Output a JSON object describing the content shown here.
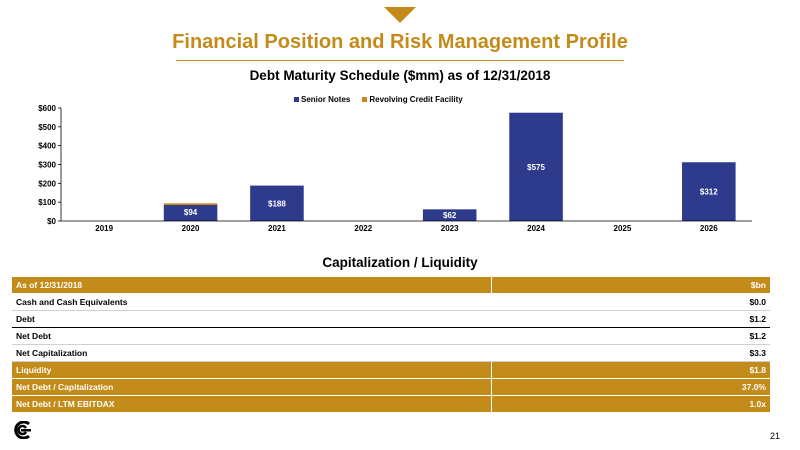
{
  "page": {
    "title": "Financial Position and Risk Management Profile",
    "page_number": "21",
    "accent_color": "#c38b1a",
    "logo_icon": "company-logo-icon"
  },
  "chart_data": {
    "type": "bar",
    "stacked": true,
    "title": "Debt Maturity Schedule ($mm) as of 12/31/2018",
    "categories": [
      "2019",
      "2020",
      "2021",
      "2022",
      "2023",
      "2024",
      "2025",
      "2026"
    ],
    "series": [
      {
        "name": "Senior Notes",
        "color": "#2e3a8c",
        "values": [
          0,
          85,
          188,
          0,
          62,
          575,
          0,
          312
        ]
      },
      {
        "name": "Revolving Credit Facility",
        "color": "#c38b1a",
        "values": [
          0,
          9,
          0,
          0,
          0,
          0,
          0,
          0
        ]
      }
    ],
    "data_labels": [
      "",
      "$94",
      "$188",
      "",
      "$62",
      "$575",
      "",
      "$312"
    ],
    "yticks": [
      "$0",
      "$100",
      "$200",
      "$300",
      "$400",
      "$500",
      "$600"
    ],
    "ylim": [
      0,
      600
    ],
    "legend": "top",
    "grid": false
  },
  "capitalization": {
    "title": "Capitalization / Liquidity",
    "rows": [
      {
        "label": "As of 12/31/2018",
        "value": "$bn"
      },
      {
        "label": "Cash and Cash Equivalents",
        "value": "$0.0"
      },
      {
        "label": "Debt",
        "value": "$1.2"
      },
      {
        "label": "Net Debt",
        "value": "$1.2"
      },
      {
        "label": "Net Capitalization",
        "value": "$3.3"
      },
      {
        "label": "Liquidity",
        "value": "$1.8"
      },
      {
        "label": "Net Debt / Capitalization",
        "value": "37.0%"
      },
      {
        "label": "Net Debt / LTM EBITDAX",
        "value": "1.0x"
      }
    ]
  }
}
